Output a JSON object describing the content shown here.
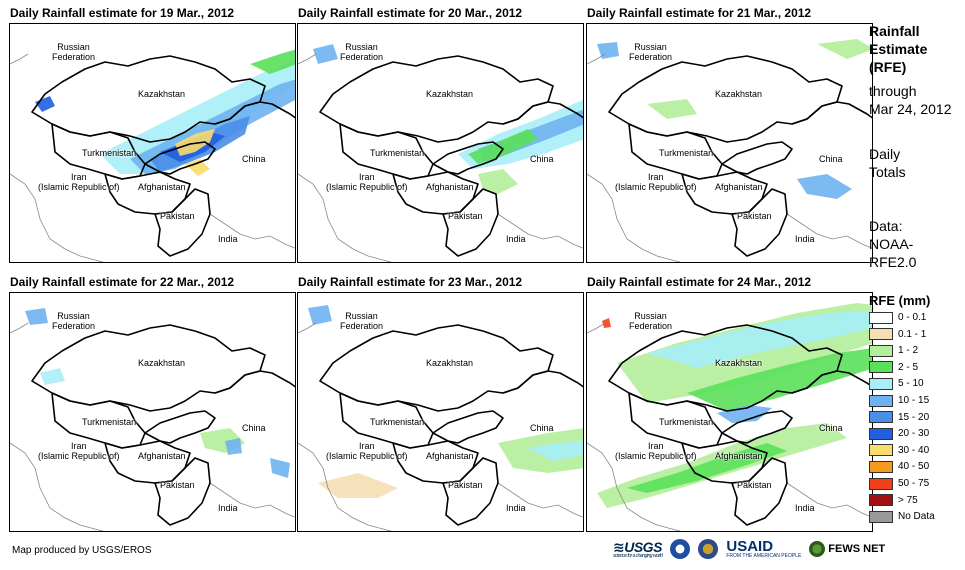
{
  "panels": [
    {
      "title": "Daily Rainfall estimate for 19 Mar., 2012",
      "rain": "d19"
    },
    {
      "title": "Daily Rainfall estimate for 20 Mar., 2012",
      "rain": "d20"
    },
    {
      "title": "Daily Rainfall estimate for 21 Mar., 2012",
      "rain": "d21"
    },
    {
      "title": "Daily Rainfall estimate for 22 Mar., 2012",
      "rain": "d22"
    },
    {
      "title": "Daily Rainfall estimate for 23 Mar., 2012",
      "rain": "d23"
    },
    {
      "title": "Daily Rainfall estimate for 24 Mar., 2012",
      "rain": "d24"
    }
  ],
  "map_labels": {
    "russia": "Russian\nFederation",
    "kazakhstan": "Kazakhstan",
    "turkmenistan": "Turkmenistan",
    "iran": "Iran\n(Islamic Republic of)",
    "afghanistan": "Afghanistan",
    "pakistan": "Pakistan",
    "china": "China",
    "india": "India"
  },
  "sidebar": {
    "title": "Rainfall Estimate (RFE)",
    "through_label": "through",
    "through_date": "Mar 24, 2012",
    "period": "Daily Totals",
    "data_label": "Data:",
    "data_source": "NOAA-RFE2.0"
  },
  "legend": {
    "title": "RFE (mm)",
    "items": [
      {
        "label": "0 - 0.1",
        "color": "#FFFFFF"
      },
      {
        "label": "0.1 - 1",
        "color": "#F5DEB3"
      },
      {
        "label": "1 - 2",
        "color": "#B4EE9A"
      },
      {
        "label": "2 - 5",
        "color": "#5BE05B"
      },
      {
        "label": "5 - 10",
        "color": "#A8EEF8"
      },
      {
        "label": "10 - 15",
        "color": "#6FB2F0"
      },
      {
        "label": "15 - 20",
        "color": "#4B8EE8"
      },
      {
        "label": "20 - 30",
        "color": "#1F5FE0"
      },
      {
        "label": "30 - 40",
        "color": "#FADB6E"
      },
      {
        "label": "40 - 50",
        "color": "#F59A1E"
      },
      {
        "label": "50 - 75",
        "color": "#F0401A"
      },
      {
        "label": "> 75",
        "color": "#A01010"
      },
      {
        "label": "No Data",
        "color": "#999999"
      }
    ]
  },
  "credit": "Map produced by USGS/EROS",
  "logos": {
    "usgs": "USGS",
    "usgs_tagline": "science for a changing world",
    "usaid": "USAID",
    "usaid_tagline": "FROM THE AMERICAN PEOPLE",
    "fews": "FEWS NET"
  }
}
